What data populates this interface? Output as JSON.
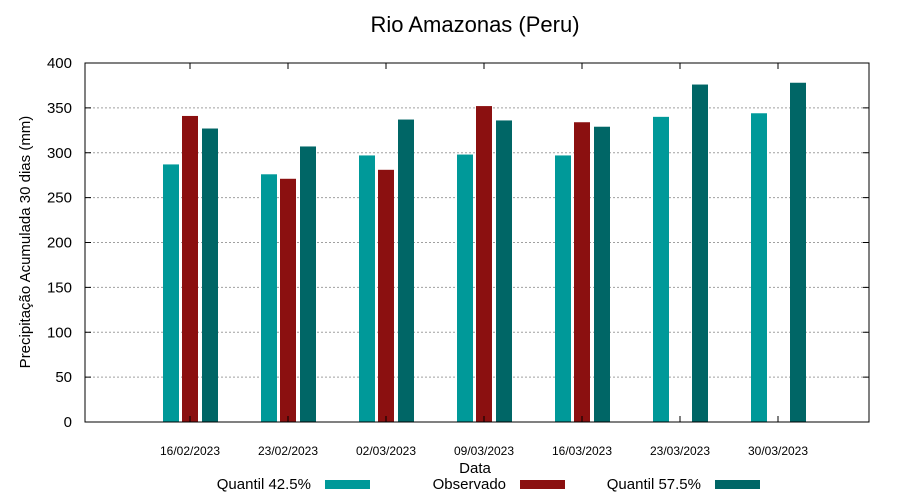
{
  "chart_data": {
    "type": "bar",
    "title": "Rio Amazonas (Peru)",
    "xlabel": "Data",
    "ylabel": "Precipitação Acumulada 30 dias (mm)",
    "ylim": [
      0,
      400
    ],
    "yticks": [
      0,
      50,
      100,
      150,
      200,
      250,
      300,
      350,
      400
    ],
    "grid": true,
    "legend_position": "bottom",
    "categories": [
      "16/02/2023",
      "23/02/2023",
      "02/03/2023",
      "09/03/2023",
      "16/03/2023",
      "23/03/2023",
      "30/03/2023"
    ],
    "series": [
      {
        "name": "Quantil 42.5%",
        "color": "#009999",
        "values": [
          287,
          276,
          297,
          298,
          297,
          340,
          344
        ]
      },
      {
        "name": "Observado",
        "color": "#8b1010",
        "values": [
          341,
          271,
          281,
          352,
          334,
          null,
          null
        ]
      },
      {
        "name": "Quantil 57.5%",
        "color": "#006666",
        "values": [
          327,
          307,
          337,
          336,
          329,
          376,
          378
        ]
      }
    ]
  }
}
